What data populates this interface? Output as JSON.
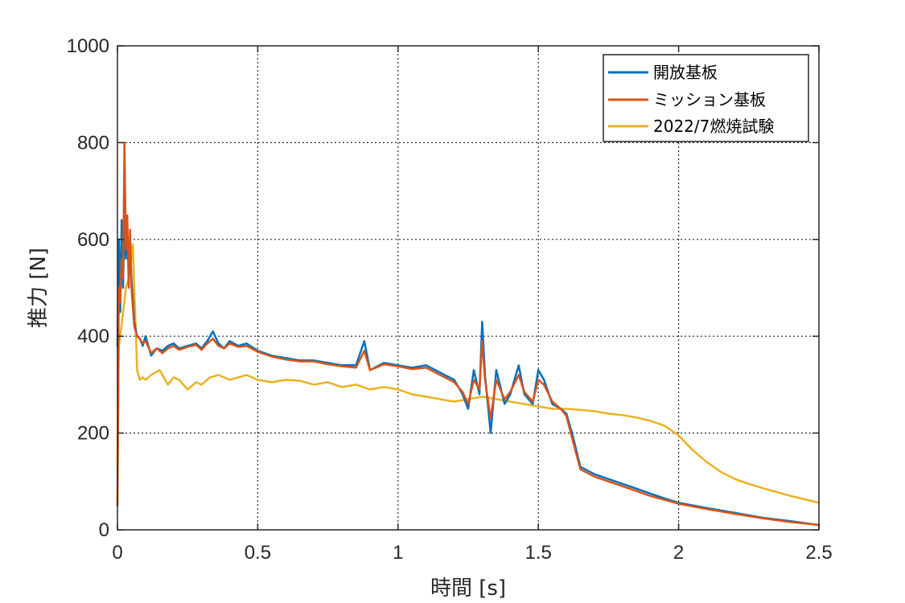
{
  "chart_data": {
    "type": "line",
    "title": "",
    "xlabel": "時間 [s]",
    "ylabel": "推力 [N]",
    "xlim": [
      0,
      2.5
    ],
    "ylim": [
      0,
      1000
    ],
    "xticks": [
      0,
      0.5,
      1,
      1.5,
      2,
      2.5
    ],
    "xtick_labels": [
      "0",
      "0.5",
      "1",
      "1.5",
      "2",
      "2.5"
    ],
    "yticks": [
      0,
      200,
      400,
      600,
      800,
      1000
    ],
    "ytick_labels": [
      "0",
      "200",
      "400",
      "600",
      "800",
      "1000"
    ],
    "grid": true,
    "legend_position": "top-right",
    "series": [
      {
        "name": "開放基板",
        "color": "#0072BD",
        "x": [
          0,
          0.005,
          0.01,
          0.015,
          0.02,
          0.025,
          0.03,
          0.035,
          0.04,
          0.045,
          0.05,
          0.06,
          0.07,
          0.08,
          0.09,
          0.1,
          0.12,
          0.14,
          0.16,
          0.18,
          0.2,
          0.22,
          0.25,
          0.28,
          0.3,
          0.32,
          0.34,
          0.36,
          0.38,
          0.4,
          0.43,
          0.46,
          0.5,
          0.55,
          0.6,
          0.65,
          0.7,
          0.75,
          0.8,
          0.85,
          0.88,
          0.9,
          0.95,
          1.0,
          1.05,
          1.1,
          1.15,
          1.2,
          1.23,
          1.25,
          1.27,
          1.29,
          1.3,
          1.31,
          1.33,
          1.35,
          1.38,
          1.4,
          1.43,
          1.45,
          1.48,
          1.5,
          1.52,
          1.55,
          1.58,
          1.6,
          1.62,
          1.65,
          1.7,
          1.75,
          1.8,
          1.85,
          1.9,
          1.95,
          2.0,
          2.1,
          2.2,
          2.3,
          2.4,
          2.5
        ],
        "values": [
          380,
          600,
          450,
          640,
          500,
          650,
          560,
          610,
          530,
          590,
          520,
          430,
          400,
          395,
          380,
          400,
          360,
          375,
          370,
          380,
          385,
          375,
          380,
          385,
          375,
          390,
          410,
          385,
          375,
          390,
          380,
          385,
          370,
          360,
          355,
          350,
          350,
          345,
          340,
          340,
          390,
          330,
          345,
          340,
          335,
          340,
          325,
          310,
          280,
          250,
          330,
          280,
          430,
          320,
          200,
          330,
          260,
          280,
          340,
          280,
          260,
          330,
          310,
          260,
          250,
          240,
          200,
          130,
          115,
          105,
          95,
          85,
          75,
          65,
          56,
          45,
          35,
          25,
          18,
          10
        ]
      },
      {
        "name": "ミッション基板",
        "color": "#D95319",
        "x": [
          0,
          0.005,
          0.01,
          0.015,
          0.02,
          0.025,
          0.03,
          0.035,
          0.04,
          0.045,
          0.05,
          0.06,
          0.07,
          0.08,
          0.09,
          0.1,
          0.12,
          0.14,
          0.16,
          0.18,
          0.2,
          0.22,
          0.25,
          0.28,
          0.3,
          0.32,
          0.34,
          0.36,
          0.38,
          0.4,
          0.43,
          0.46,
          0.5,
          0.55,
          0.6,
          0.65,
          0.7,
          0.75,
          0.8,
          0.85,
          0.88,
          0.9,
          0.95,
          1.0,
          1.05,
          1.1,
          1.15,
          1.2,
          1.23,
          1.25,
          1.27,
          1.29,
          1.3,
          1.31,
          1.33,
          1.35,
          1.38,
          1.4,
          1.43,
          1.45,
          1.48,
          1.5,
          1.52,
          1.55,
          1.58,
          1.6,
          1.62,
          1.65,
          1.7,
          1.75,
          1.8,
          1.85,
          1.9,
          1.95,
          2.0,
          2.1,
          2.2,
          2.3,
          2.4,
          2.5
        ],
        "values": [
          50,
          500,
          470,
          560,
          520,
          800,
          580,
          650,
          500,
          620,
          500,
          420,
          400,
          395,
          385,
          390,
          365,
          375,
          365,
          375,
          380,
          372,
          378,
          382,
          372,
          385,
          395,
          380,
          375,
          385,
          378,
          380,
          368,
          358,
          352,
          348,
          348,
          342,
          338,
          335,
          370,
          330,
          342,
          338,
          332,
          335,
          320,
          305,
          285,
          260,
          310,
          290,
          390,
          310,
          230,
          310,
          270,
          285,
          320,
          285,
          265,
          310,
          300,
          265,
          250,
          235,
          190,
          125,
          110,
          100,
          90,
          80,
          70,
          62,
          54,
          43,
          33,
          24,
          16,
          10
        ]
      },
      {
        "name": "2022/7燃焼試験",
        "color": "#EDB120",
        "x": [
          0,
          0.005,
          0.01,
          0.02,
          0.03,
          0.04,
          0.05,
          0.055,
          0.06,
          0.065,
          0.07,
          0.08,
          0.09,
          0.1,
          0.12,
          0.15,
          0.18,
          0.2,
          0.22,
          0.25,
          0.28,
          0.3,
          0.33,
          0.36,
          0.4,
          0.43,
          0.46,
          0.5,
          0.55,
          0.6,
          0.65,
          0.7,
          0.75,
          0.8,
          0.85,
          0.9,
          0.95,
          1.0,
          1.05,
          1.1,
          1.15,
          1.2,
          1.25,
          1.3,
          1.35,
          1.4,
          1.45,
          1.5,
          1.55,
          1.6,
          1.65,
          1.7,
          1.75,
          1.8,
          1.85,
          1.9,
          1.95,
          2.0,
          2.05,
          2.1,
          2.15,
          2.2,
          2.25,
          2.3,
          2.35,
          2.4,
          2.45,
          2.5
        ],
        "values": [
          50,
          380,
          400,
          450,
          500,
          520,
          560,
          590,
          500,
          420,
          330,
          310,
          315,
          310,
          320,
          330,
          300,
          315,
          310,
          290,
          305,
          300,
          315,
          320,
          310,
          315,
          320,
          310,
          305,
          310,
          308,
          300,
          305,
          295,
          300,
          290,
          295,
          290,
          280,
          275,
          270,
          265,
          270,
          275,
          270,
          265,
          260,
          255,
          250,
          250,
          248,
          245,
          240,
          237,
          232,
          225,
          215,
          195,
          165,
          140,
          120,
          105,
          95,
          86,
          78,
          70,
          63,
          56
        ]
      }
    ]
  }
}
